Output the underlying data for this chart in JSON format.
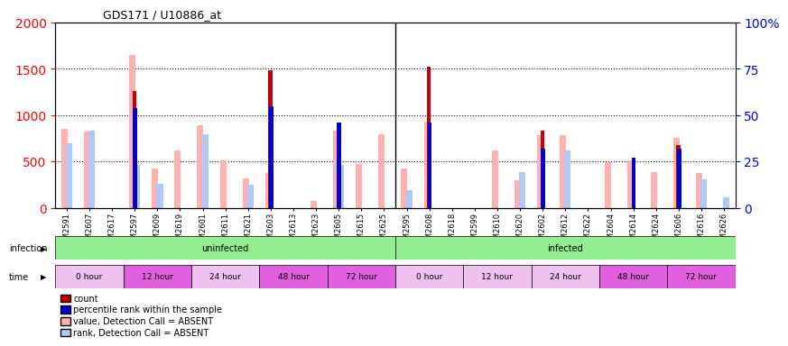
{
  "title": "GDS171 / U10886_at",
  "samples": [
    "GSM2591",
    "GSM2607",
    "GSM2617",
    "GSM2597",
    "GSM2609",
    "GSM2619",
    "GSM2601",
    "GSM2611",
    "GSM2621",
    "GSM2603",
    "GSM2613",
    "GSM2623",
    "GSM2605",
    "GSM2615",
    "GSM2625",
    "GSM2595",
    "GSM2608",
    "GSM2618",
    "GSM2599",
    "GSM2610",
    "GSM2620",
    "GSM2602",
    "GSM2612",
    "GSM2622",
    "GSM2604",
    "GSM2614",
    "GSM2624",
    "GSM2606",
    "GSM2616",
    "GSM2626"
  ],
  "count_red": [
    0,
    0,
    0,
    1260,
    0,
    0,
    0,
    0,
    0,
    1480,
    0,
    0,
    850,
    0,
    0,
    0,
    1520,
    0,
    0,
    0,
    0,
    830,
    0,
    0,
    0,
    0,
    0,
    680,
    0,
    0
  ],
  "rank_blue": [
    0,
    0,
    0,
    1080,
    0,
    0,
    0,
    0,
    0,
    1100,
    0,
    0,
    920,
    0,
    0,
    0,
    920,
    0,
    0,
    0,
    0,
    640,
    0,
    0,
    0,
    540,
    0,
    640,
    0,
    0
  ],
  "value_pink": [
    850,
    820,
    0,
    1650,
    430,
    620,
    890,
    510,
    320,
    380,
    0,
    80,
    830,
    470,
    790,
    430,
    930,
    0,
    0,
    620,
    300,
    780,
    780,
    0,
    490,
    510,
    390,
    760,
    380,
    0
  ],
  "rank_lightblue": [
    700,
    830,
    0,
    460,
    260,
    0,
    790,
    0,
    250,
    0,
    0,
    0,
    460,
    0,
    0,
    190,
    0,
    0,
    0,
    0,
    390,
    0,
    620,
    0,
    0,
    0,
    0,
    0,
    310,
    110
  ],
  "infection_groups": [
    {
      "label": "uninfected",
      "start": 0,
      "end": 15
    },
    {
      "label": "infected",
      "start": 15,
      "end": 30
    }
  ],
  "time_groups": [
    {
      "label": "0 hour",
      "start": 0,
      "end": 3,
      "color": "#f0c0f0"
    },
    {
      "label": "12 hour",
      "start": 3,
      "end": 6,
      "color": "#e060e0"
    },
    {
      "label": "24 hour",
      "start": 6,
      "end": 9,
      "color": "#f0c0f0"
    },
    {
      "label": "48 hour",
      "start": 9,
      "end": 12,
      "color": "#e060e0"
    },
    {
      "label": "72 hour",
      "start": 12,
      "end": 15,
      "color": "#e060e0"
    },
    {
      "label": "0 hour",
      "start": 15,
      "end": 18,
      "color": "#f0c0f0"
    },
    {
      "label": "12 hour",
      "start": 18,
      "end": 21,
      "color": "#f0c0f0"
    },
    {
      "label": "24 hour",
      "start": 21,
      "end": 24,
      "color": "#f0c0f0"
    },
    {
      "label": "48 hour",
      "start": 24,
      "end": 27,
      "color": "#e060e0"
    },
    {
      "label": "72 hour",
      "start": 27,
      "end": 30,
      "color": "#e060e0"
    }
  ],
  "ylim_left": [
    0,
    2000
  ],
  "ylim_right": [
    0,
    100
  ],
  "yticks_left": [
    0,
    500,
    1000,
    1500,
    2000
  ],
  "yticks_right": [
    0,
    25,
    50,
    75,
    100
  ],
  "bg_color": "#f0f0f0",
  "bar_width": 0.35
}
